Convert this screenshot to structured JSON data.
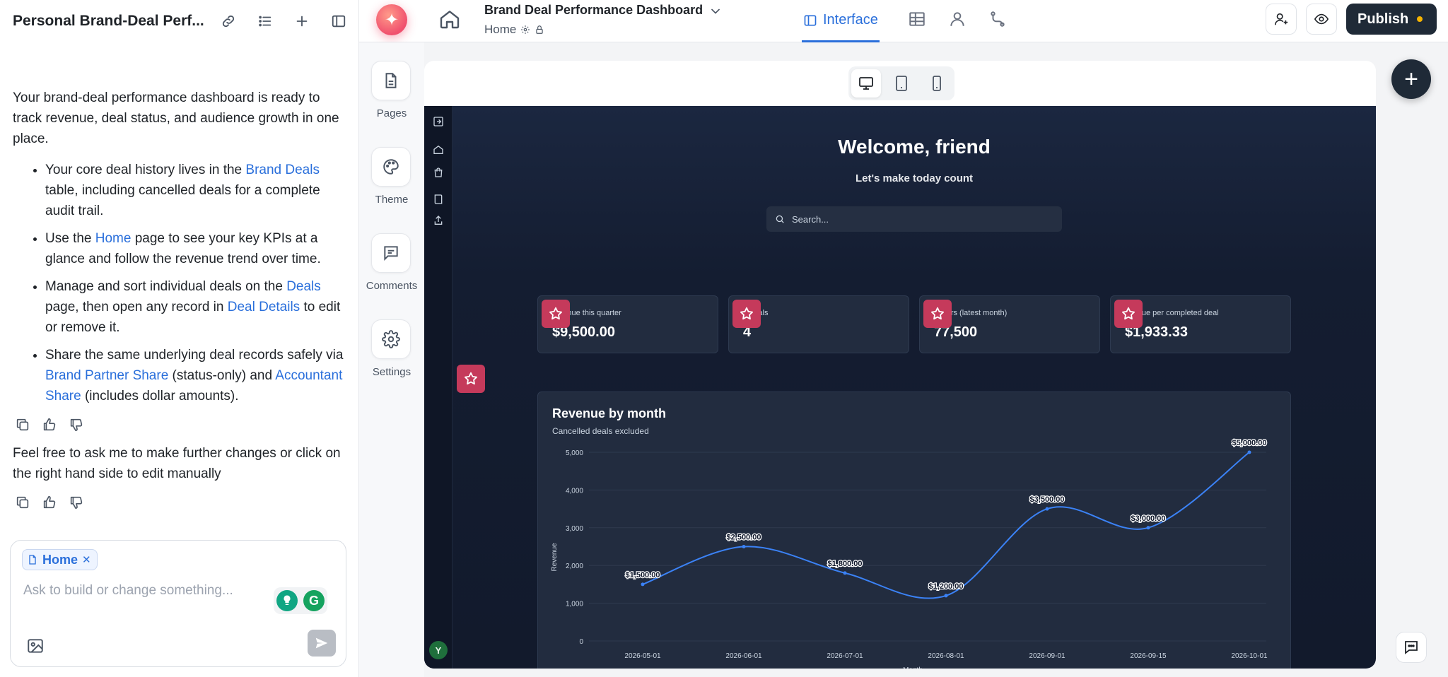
{
  "chat": {
    "title": "Personal Brand-Deal Perf...",
    "intro": "Your brand-deal performance dashboard is ready to track revenue, deal status, and audience growth in one place.",
    "bullets": [
      {
        "pre": "Your core deal history lives in the ",
        "link": "Brand Deals",
        "post": " table, including cancelled deals for a complete audit trail."
      },
      {
        "pre": "Use the ",
        "link": "Home",
        "post": " page to see your key KPIs at a glance and follow the revenue trend over time."
      },
      {
        "pre": "Manage and sort individual deals on the ",
        "link": "Deals",
        "mid": " page, then open any record in ",
        "link2": "Deal Details",
        "post": " to edit or remove it."
      },
      {
        "pre": "Share the same underlying deal records safely via ",
        "link": "Brand Partner Share",
        "mid": " (status-only) and ",
        "link2": "Accountant Share",
        "post": " (includes dollar amounts)."
      }
    ],
    "followup": "Feel free to ask me to make further changes or click on the right hand side to edit manually",
    "composer": {
      "chip": "Home",
      "placeholder": "Ask to build or change something..."
    }
  },
  "topbar": {
    "doc_title": "Brand Deal Performance Dashboard",
    "doc_page": "Home",
    "active_tab": "Interface",
    "publish_label": "Publish"
  },
  "rail": {
    "items": [
      "Pages",
      "Theme",
      "Comments",
      "Settings"
    ]
  },
  "preview": {
    "welcome": "Welcome, friend",
    "subtitle": "Let's make today count",
    "search_placeholder": "Search...",
    "avatar_initial": "Y",
    "kpis": [
      {
        "label": "revenue this quarter",
        "value": "$9,500.00"
      },
      {
        "label": "e deals",
        "value": "4"
      },
      {
        "label": "cribers (latest month)",
        "value": "77,500"
      },
      {
        "label": "evenue per completed deal",
        "value": "$1,933.33"
      }
    ],
    "accent_color": "#c53a5b"
  },
  "chart_data": {
    "type": "line",
    "title": "Revenue by month",
    "subtitle": "Cancelled deals excluded",
    "xlabel": "Month",
    "ylabel": "Revenue",
    "x": [
      "2026-05-01",
      "2026-06-01",
      "2026-07-01",
      "2026-08-01",
      "2026-09-01",
      "2026-09-15",
      "2026-10-01"
    ],
    "values": [
      1500,
      2500,
      1800,
      1200,
      3500,
      3000,
      5000
    ],
    "data_labels": [
      "$1,500.00",
      "$2,500.00",
      "$1,800.00",
      "$1,200.00",
      "$3,500.00",
      "$3,000.00",
      "$5,000.00"
    ],
    "yticks": [
      "0",
      "1,000",
      "2,000",
      "3,000",
      "4,000",
      "5,000"
    ],
    "ylim": [
      0,
      5000
    ],
    "grid": true,
    "line_color": "#3b82f6"
  }
}
